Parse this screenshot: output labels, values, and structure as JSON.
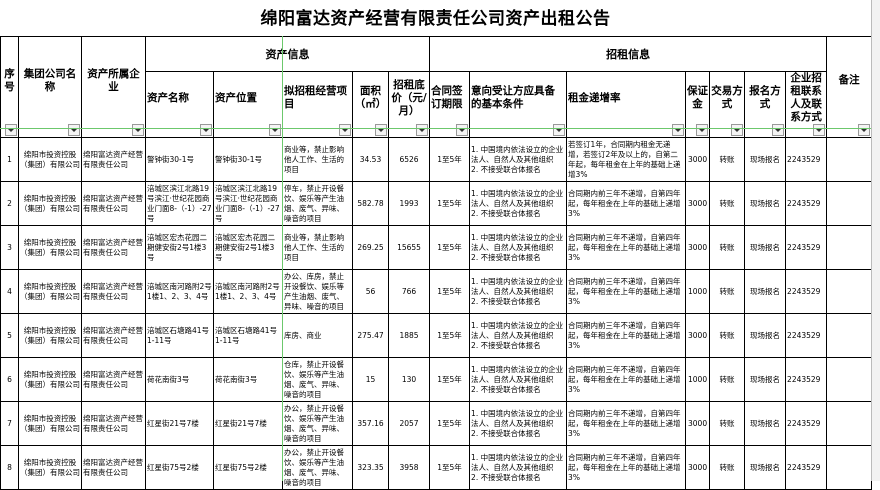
{
  "title": "绵阳富达资产经营有限责任公司资产出租公告",
  "groups": {
    "asset_info": "资产信息",
    "rent_info": "招租信息"
  },
  "headers": [
    "序号",
    "集团公司名称",
    "资产所属企业",
    "资产名称",
    "资产位置",
    "拟招租经营项目",
    "面积（㎡）",
    "招租底价（元/月）",
    "合同签订期限",
    "意向受让方应具备的基本条件",
    "租金递增率",
    "保证金",
    "交易方式",
    "报名方式",
    "企业招租联系人及联系方式",
    "备注"
  ],
  "filter_icon": "dropdown-arrow",
  "rows": [
    {
      "no": "1",
      "group": "绵阳市投资控股（集团）有限公司",
      "owner": "绵阳富达资产经营有限责任公司",
      "name": "警钟街30-1号",
      "location": "警钟街30-1号",
      "use": "商业等，禁止影响他人工作、生活的项目",
      "area": "34.53",
      "price": "6526",
      "term": "1至5年",
      "cond": "1. 中国境内依法设立的企业法人、自然人及其他组织\n2. 不接受联合体报名",
      "rate": "若签订1年，合同期内租金无递增，若签订2年及以上的，自第二年起，每年租金在上年的基础上递增3%",
      "deposit": "3000",
      "trade": "转账",
      "signup": "现场报名",
      "contact": "2243529",
      "note": ""
    },
    {
      "no": "2",
      "group": "绵阳市投资控股（集团）有限公司",
      "owner": "绵阳富达资产经营有限责任公司",
      "name": "涪城区滨江北路19号滨江·世纪花园商业门面8-（-1）-27号",
      "location": "涪城区滨江北路19号滨江·世纪花园商业门面8-（-1）-27号",
      "use": "停车，禁止开设餐饮、娱乐等产生油烟、废气、异味、噪音的项目",
      "area": "582.78",
      "price": "1993",
      "term": "1至5年",
      "cond": "1. 中国境内依法设立的企业法人、自然人及其他组织\n2. 不接受联合体报名",
      "rate": "合同期内前三年不递增，自第四年起，每年租金在上年的基础上递增3%",
      "deposit": "3000",
      "trade": "转账",
      "signup": "现场报名",
      "contact": "2243529",
      "note": ""
    },
    {
      "no": "3",
      "group": "绵阳市投资控股（集团）有限公司",
      "owner": "绵阳富达资产经营有限责任公司",
      "name": "涪城区宏杰花园二期健安街2号1楼3号",
      "location": "涪城区宏杰花园二期健安街2号1楼3号",
      "use": "商业等，禁止影响他人工作、生活的项目",
      "area": "269.25",
      "price": "15655",
      "term": "1至5年",
      "cond": "1. 中国境内依法设立的企业法人、自然人及其他组织\n2. 不接受联合体报名",
      "rate": "合同期内前三年不递增，自第四年起，每年租金在上年的基础上递增3%",
      "deposit": "3000",
      "trade": "转账",
      "signup": "现场报名",
      "contact": "2243529",
      "note": ""
    },
    {
      "no": "4",
      "group": "绵阳市投资控股（集团）有限公司",
      "owner": "绵阳富达资产经营有限责任公司",
      "name": "涪城区南河路附2号1楼1、2、3、4号",
      "location": "涪城区南河路附2号1楼1、2、3、4号",
      "use": "办公、库房，禁止开设餐饮、娱乐等产生油烟、废气、异味、噪音的项目",
      "area": "56",
      "price": "766",
      "term": "1至5年",
      "cond": "1. 中国境内依法设立的企业法人、自然人及其他组织\n2. 不接受联合体报名",
      "rate": "合同期内前三年不递增，自第四年起，每年租金在上年的基础上递增3%",
      "deposit": "1000",
      "trade": "转账",
      "signup": "现场报名",
      "contact": "2243529",
      "note": ""
    },
    {
      "no": "5",
      "group": "绵阳市投资控股（集团）有限公司",
      "owner": "绵阳富达资产经营有限责任公司",
      "name": "涪城区石塘路41号1-11号",
      "location": "涪城区石塘路41号1-11号",
      "use": "库房、商业",
      "area": "275.47",
      "price": "1885",
      "term": "1至5年",
      "cond": "1. 中国境内依法设立的企业法人、自然人及其他组织\n2. 不接受联合体报名",
      "rate": "合同期内前三年不递增，自第四年起，每年租金在上年的基础上递增3%",
      "deposit": "3000",
      "trade": "转账",
      "signup": "现场报名",
      "contact": "2243529",
      "note": ""
    },
    {
      "no": "6",
      "group": "绵阳市投资控股（集团）有限公司",
      "owner": "绵阳富达资产经营有限责任公司",
      "name": "荷花南街3号",
      "location": "荷花南街3号",
      "use": "仓库，禁止开设餐饮、娱乐等产生油烟、废气、异味、噪音的项目",
      "area": "15",
      "price": "130",
      "term": "1至5年",
      "cond": "1. 中国境内依法设立的企业法人、自然人及其他组织\n2. 不接受联合体报名",
      "rate": "合同期内前三年不递增，自第四年起，每年租金在上年的基础上递增3%",
      "deposit": "1000",
      "trade": "转账",
      "signup": "现场报名",
      "contact": "2243529",
      "note": ""
    },
    {
      "no": "7",
      "group": "绵阳市投资控股（集团）有限公司",
      "owner": "绵阳富达资产经营有限责任公司",
      "name": "红星街21号7楼",
      "location": "红星街21号7楼",
      "use": "办公，禁止开设餐饮、娱乐等产生油烟、废气、异味、噪音的项目",
      "area": "357.16",
      "price": "2057",
      "term": "1至5年",
      "cond": "1. 中国境内依法设立的企业法人、自然人及其他组织\n2. 不接受联合体报名",
      "rate": "合同期内前三年不递增，自第四年起，每年租金在上年的基础上递增3%",
      "deposit": "3000",
      "trade": "转账",
      "signup": "现场报名",
      "contact": "2243529",
      "note": ""
    },
    {
      "no": "8",
      "group": "绵阳市投资控股（集团）有限公司",
      "owner": "绵阳富达资产经营有限责任公司",
      "name": "红星街75号2楼",
      "location": "红星街75号2楼",
      "use": "办公，禁止开设餐饮、娱乐等产生油烟、废气、异味、噪音的项目",
      "area": "323.35",
      "price": "3958",
      "term": "1至5年",
      "cond": "1. 中国境内依法设立的企业法人、自然人及其他组织\n2. 不接受联合体报名",
      "rate": "合同期内前三年不递增，自第四年起，每年租金在上年的基础上递增3%",
      "deposit": "3000",
      "trade": "转账",
      "signup": "现场报名",
      "contact": "2243529",
      "note": ""
    }
  ]
}
